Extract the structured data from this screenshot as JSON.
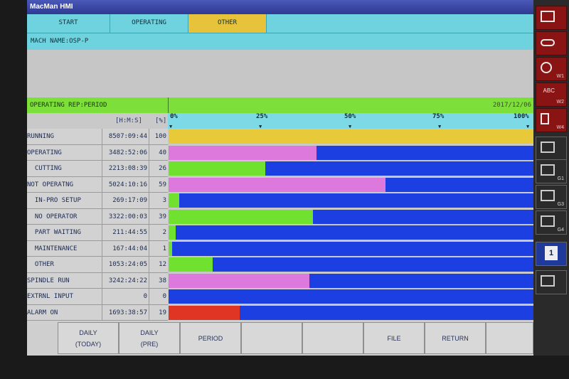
{
  "window": {
    "title": "MacMan HMI"
  },
  "tabs": [
    {
      "label": "START",
      "active": false
    },
    {
      "label": "OPERATING",
      "active": false
    },
    {
      "label": "OTHER",
      "active": true
    }
  ],
  "machine": {
    "name_label": "MACH NAME:OSP-P"
  },
  "report": {
    "title": "OPERATING REP:PERIOD",
    "date": "2017/12/06",
    "unit_time": "[H:M:S]",
    "unit_pct": "[%]",
    "scale_ticks": [
      "0%",
      "25%",
      "50%",
      "75%",
      "100%"
    ]
  },
  "rows": [
    {
      "label": "RUNNING",
      "time": "8507:09:44",
      "pct": "100",
      "value": 100,
      "color": "#e7c93a"
    },
    {
      "label": "OPERATING",
      "time": "3482:52:06",
      "pct": "40",
      "value": 40.5,
      "color": "#dd79dd"
    },
    {
      "label": "  CUTTING",
      "time": "2213:08:39",
      "pct": "26",
      "value": 26.5,
      "color": "#6fe12e"
    },
    {
      "label": "NOT OPERATNG",
      "time": "5024:10:16",
      "pct": "59",
      "value": 59.5,
      "color": "#dd79dd"
    },
    {
      "label": "  IN-PRO SETUP",
      "time": "269:17:09",
      "pct": "3",
      "value": 3,
      "color": "#6fe12e"
    },
    {
      "label": "  NO OPERATOR",
      "time": "3322:00:03",
      "pct": "39",
      "value": 39.5,
      "color": "#6fe12e"
    },
    {
      "label": "  PART WAITING",
      "time": "211:44:55",
      "pct": "2",
      "value": 2,
      "color": "#6fe12e"
    },
    {
      "label": "  MAINTENANCE",
      "time": "167:44:04",
      "pct": "1",
      "value": 1,
      "color": "#6fe12e"
    },
    {
      "label": "  OTHER",
      "time": "1053:24:05",
      "pct": "12",
      "value": 12,
      "color": "#6fe12e"
    },
    {
      "label": "SPINDLE RUN",
      "time": "3242:24:22",
      "pct": "38",
      "value": 38.5,
      "color": "#dd79dd"
    },
    {
      "label": "EXTRNL INPUT",
      "time": "0",
      "pct": "0",
      "value": 0,
      "color": "#dd79dd"
    },
    {
      "label": "ALARM ON",
      "time": "1693:38:57",
      "pct": "19",
      "value": 19.5,
      "color": "#e03424"
    }
  ],
  "function_keys": [
    {
      "line1": "DAILY",
      "line2": "(TODAY)"
    },
    {
      "line1": "DAILY",
      "line2": "(PRE)"
    },
    {
      "line1": "PERIOD",
      "line2": ""
    },
    {
      "line1": "",
      "line2": ""
    },
    {
      "line1": "",
      "line2": ""
    },
    {
      "line1": "FILE",
      "line2": ""
    },
    {
      "line1": "RETURN",
      "line2": ""
    },
    {
      "line1": "",
      "line2": ""
    }
  ],
  "side_buttons": [
    {
      "label": ""
    },
    {
      "label": ""
    },
    {
      "label": "W1"
    },
    {
      "label": "W2"
    },
    {
      "label": "W4"
    },
    {
      "label": ""
    },
    {
      "label": "G1"
    },
    {
      "label": "G3"
    },
    {
      "label": "G4"
    },
    {
      "label": "1"
    },
    {
      "label": ""
    }
  ],
  "colors": {
    "bar_track": "#1b3fe0",
    "header_green": "#7de03a",
    "tab_cyan": "#6fd3df",
    "tab_active": "#e6c33b"
  }
}
